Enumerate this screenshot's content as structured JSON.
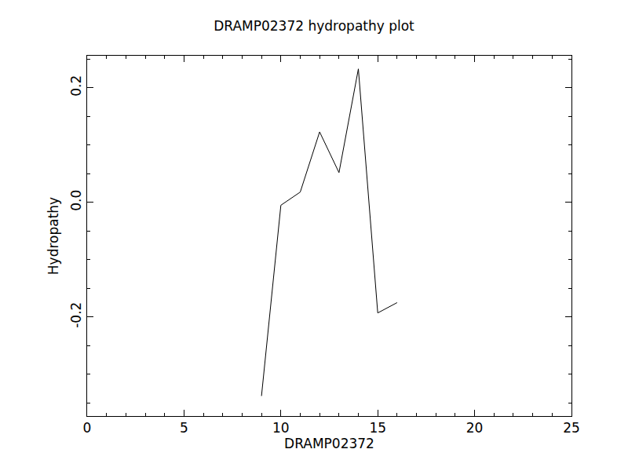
{
  "chart_data": {
    "type": "line",
    "title": "DRAMP02372 hydropathy plot",
    "x_label": "DRAMP02372",
    "y_label": "Hydropathy",
    "x": [
      9,
      10,
      11,
      12,
      13,
      14,
      15,
      16
    ],
    "values": [
      -0.338,
      -0.005,
      0.018,
      0.123,
      0.052,
      0.233,
      -0.193,
      -0.175
    ],
    "color": "#000000",
    "xlim": [
      0,
      25
    ],
    "xticks": [
      0,
      5,
      10,
      15,
      20,
      25
    ],
    "ylim": [
      -0.373,
      0.256
    ],
    "yticks": [
      -0.2,
      {
        "value": 0,
        "label": "0.0"
      },
      0.2
    ],
    "grid": false
  }
}
